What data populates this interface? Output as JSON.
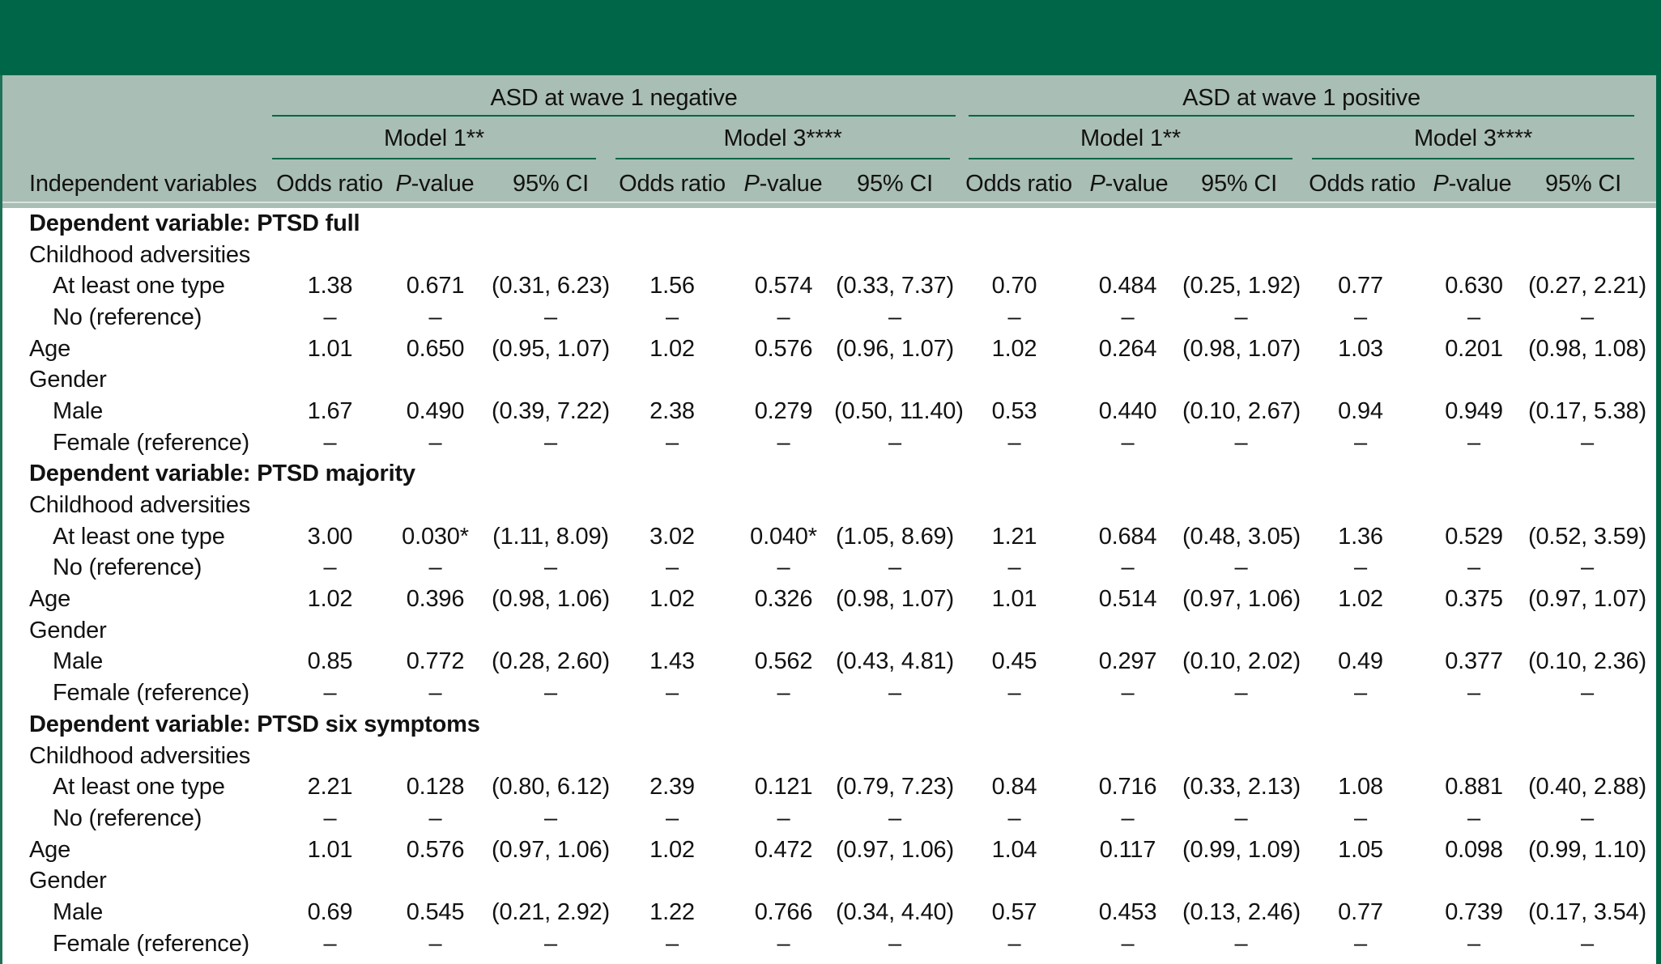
{
  "table": {
    "title_bar": "",
    "header": {
      "row_label_header": "Independent variables",
      "groups": [
        {
          "label": "ASD at wave 1 negative",
          "models": [
            {
              "label": "Model 1**"
            },
            {
              "label": "Model 3****"
            }
          ]
        },
        {
          "label": "ASD at wave 1 positive",
          "models": [
            {
              "label": "Model 1**"
            },
            {
              "label": "Model 3****"
            }
          ]
        }
      ],
      "col_headers": {
        "odds": "Odds ratio",
        "p_italic": "P",
        "p_rest": "-value",
        "ci": "95% CI"
      }
    },
    "rows": [
      {
        "type": "section",
        "label": "Dependent variable: PTSD full",
        "cells": []
      },
      {
        "type": "plain",
        "label": "Childhood adversities",
        "cells": []
      },
      {
        "type": "indent",
        "label": "At least one type",
        "cells": [
          "1.38",
          "0.671",
          "(0.31, 6.23)",
          "1.56",
          "0.574",
          "(0.33, 7.37)",
          "0.70",
          "0.484",
          "(0.25, 1.92)",
          "0.77",
          "0.630",
          "(0.27, 2.21)"
        ]
      },
      {
        "type": "indent",
        "label": "No (reference)",
        "cells": [
          "–",
          "–",
          "–",
          "–",
          "–",
          "–",
          "–",
          "–",
          "–",
          "–",
          "–",
          "–"
        ]
      },
      {
        "type": "plain",
        "label": "Age",
        "cells": [
          "1.01",
          "0.650",
          "(0.95, 1.07)",
          "1.02",
          "0.576",
          "(0.96, 1.07)",
          "1.02",
          "0.264",
          "(0.98, 1.07)",
          "1.03",
          "0.201",
          "(0.98, 1.08)"
        ]
      },
      {
        "type": "plain",
        "label": "Gender",
        "cells": []
      },
      {
        "type": "indent",
        "label": "Male",
        "cells": [
          "1.67",
          "0.490",
          "(0.39, 7.22)",
          "2.38",
          "0.279",
          "(0.50, 11.40)",
          "0.53",
          "0.440",
          "(0.10, 2.67)",
          "0.94",
          "0.949",
          "(0.17, 5.38)"
        ]
      },
      {
        "type": "indent",
        "label": "Female (reference)",
        "cells": [
          "–",
          "–",
          "–",
          "–",
          "–",
          "–",
          "–",
          "–",
          "–",
          "–",
          "–",
          "–"
        ]
      },
      {
        "type": "section",
        "label": "Dependent variable: PTSD majority",
        "cells": []
      },
      {
        "type": "plain",
        "label": "Childhood adversities",
        "cells": []
      },
      {
        "type": "indent",
        "label": "At least one type",
        "cells": [
          "3.00",
          "0.030*",
          "(1.11, 8.09)",
          "3.02",
          "0.040*",
          "(1.05, 8.69)",
          "1.21",
          "0.684",
          "(0.48, 3.05)",
          "1.36",
          "0.529",
          "(0.52, 3.59)"
        ]
      },
      {
        "type": "indent",
        "label": "No (reference)",
        "cells": [
          "–",
          "–",
          "–",
          "–",
          "–",
          "–",
          "–",
          "–",
          "–",
          "–",
          "–",
          "–"
        ]
      },
      {
        "type": "plain",
        "label": "Age",
        "cells": [
          "1.02",
          "0.396",
          "(0.98, 1.06)",
          "1.02",
          "0.326",
          "(0.98, 1.07)",
          "1.01",
          "0.514",
          "(0.97, 1.06)",
          "1.02",
          "0.375",
          "(0.97, 1.07)"
        ]
      },
      {
        "type": "plain",
        "label": "Gender",
        "cells": []
      },
      {
        "type": "indent",
        "label": "Male",
        "cells": [
          "0.85",
          "0.772",
          "(0.28, 2.60)",
          "1.43",
          "0.562",
          "(0.43, 4.81)",
          "0.45",
          "0.297",
          "(0.10, 2.02)",
          "0.49",
          "0.377",
          "(0.10, 2.36)"
        ]
      },
      {
        "type": "indent",
        "label": "Female (reference)",
        "cells": [
          "–",
          "–",
          "–",
          "–",
          "–",
          "–",
          "–",
          "–",
          "–",
          "–",
          "–",
          "–"
        ]
      },
      {
        "type": "section",
        "label": "Dependent variable: PTSD six symptoms",
        "cells": []
      },
      {
        "type": "plain",
        "label": "Childhood adversities",
        "cells": []
      },
      {
        "type": "indent",
        "label": "At least one type",
        "cells": [
          "2.21",
          "0.128",
          "(0.80, 6.12)",
          "2.39",
          "0.121",
          "(0.79, 7.23)",
          "0.84",
          "0.716",
          "(0.33, 2.13)",
          "1.08",
          "0.881",
          "(0.40, 2.88)"
        ]
      },
      {
        "type": "indent",
        "label": "No (reference)",
        "cells": [
          "–",
          "–",
          "–",
          "–",
          "–",
          "–",
          "–",
          "–",
          "–",
          "–",
          "–",
          "–"
        ]
      },
      {
        "type": "plain",
        "label": "Age",
        "cells": [
          "1.01",
          "0.576",
          "(0.97, 1.06)",
          "1.02",
          "0.472",
          "(0.97, 1.06)",
          "1.04",
          "0.117",
          "(0.99, 1.09)",
          "1.05",
          "0.098",
          "(0.99, 1.10)"
        ]
      },
      {
        "type": "plain",
        "label": "Gender",
        "cells": []
      },
      {
        "type": "indent",
        "label": "Male",
        "cells": [
          "0.69",
          "0.545",
          "(0.21, 2.92)",
          "1.22",
          "0.766",
          "(0.34, 4.40)",
          "0.57",
          "0.453",
          "(0.13, 2.46)",
          "0.77",
          "0.739",
          "(0.17, 3.54)"
        ]
      },
      {
        "type": "indent",
        "label": "Female (reference)",
        "cells": [
          "–",
          "–",
          "–",
          "–",
          "–",
          "–",
          "–",
          "–",
          "–",
          "–",
          "–",
          "–"
        ]
      }
    ],
    "colors": {
      "brand_green": "#006648",
      "header_sage": "#a9beb5"
    }
  }
}
